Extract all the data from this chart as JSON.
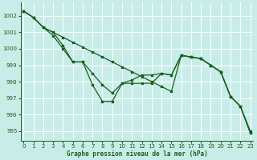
{
  "title": "Graphe pression niveau de la mer (hPa)",
  "bg_color": "#c8ede8",
  "grid_color": "#ffffff",
  "line_color": "#1a5e20",
  "xlim": [
    -0.3,
    23.3
  ],
  "ylim": [
    994.4,
    1002.8
  ],
  "yticks": [
    995,
    996,
    997,
    998,
    999,
    1000,
    1001,
    1002
  ],
  "xticks": [
    0,
    1,
    2,
    3,
    4,
    5,
    6,
    7,
    8,
    9,
    10,
    11,
    12,
    13,
    14,
    15,
    16,
    17,
    18,
    19,
    20,
    21,
    22,
    23
  ],
  "series1": [
    1002.3,
    1001.9,
    1001.3,
    1001.0,
    1000.7,
    1000.4,
    1000.1,
    999.8,
    999.5,
    999.2,
    998.9,
    998.6,
    998.3,
    998.0,
    997.7,
    997.4,
    999.6,
    999.5,
    999.4,
    999.0,
    998.6,
    997.1,
    996.5,
    995.0
  ],
  "series2": [
    1002.3,
    1001.9,
    1001.3,
    1001.0,
    1000.2,
    999.2,
    999.2,
    998.5,
    997.8,
    997.3,
    997.9,
    998.1,
    998.4,
    998.4,
    998.5,
    998.4,
    999.6,
    999.5,
    999.4,
    999.0,
    998.6,
    997.1,
    996.5,
    994.9
  ],
  "series3": [
    1002.3,
    1001.9,
    1001.3,
    1000.8,
    1000.0,
    999.2,
    999.2,
    997.8,
    996.8,
    996.8,
    997.9,
    997.9,
    997.9,
    997.9,
    998.5,
    998.4,
    999.6,
    999.5,
    999.4,
    999.0,
    998.6,
    997.1,
    996.5,
    994.9
  ]
}
